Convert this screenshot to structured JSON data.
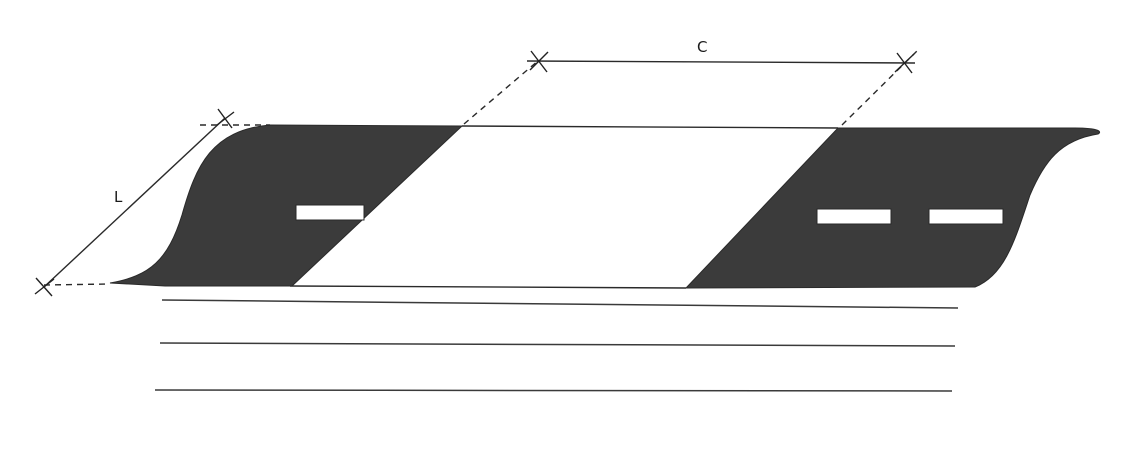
{
  "diagram": {
    "labels": {
      "length": "L",
      "clearance": "C"
    },
    "colors": {
      "panel": "#3b3b3b",
      "line": "#2a2a2a",
      "background": "#ffffff"
    }
  }
}
